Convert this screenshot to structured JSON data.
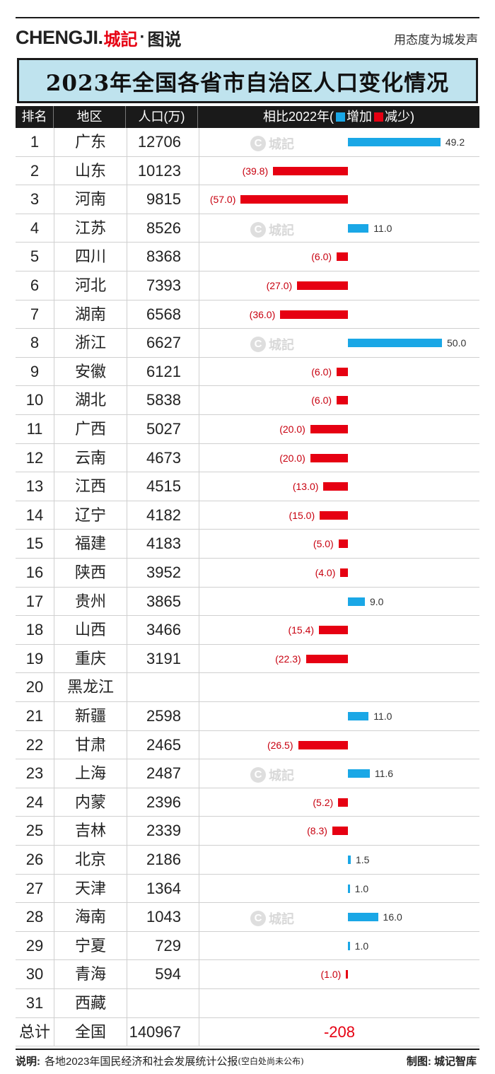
{
  "header": {
    "brand_latin": "CHENGJI.",
    "brand_cn": "城記",
    "brand_sep": "·",
    "brand_sub": "图说",
    "slogan": "用态度为城发声"
  },
  "title": "2023年全国各省市自治区人口变化情况",
  "watermark": "城記",
  "table_header": {
    "rank": "排名",
    "region": "地区",
    "population": "人口(万)",
    "change_prefix": "相比2022年(",
    "increase": "增加",
    "decrease": "减少",
    "change_suffix": ")"
  },
  "colors": {
    "increase": "#1aa7e6",
    "decrease": "#e60012",
    "title_bg": "#bfe3ee"
  },
  "chart_data": {
    "type": "bar",
    "title": "2023年全国各省市自治区人口变化情况",
    "categories": [
      "广东",
      "山东",
      "河南",
      "江苏",
      "四川",
      "河北",
      "湖南",
      "浙江",
      "安徽",
      "湖北",
      "广西",
      "云南",
      "江西",
      "辽宁",
      "福建",
      "陕西",
      "贵州",
      "山西",
      "重庆",
      "黑龙江",
      "新疆",
      "甘肃",
      "上海",
      "内蒙",
      "吉林",
      "北京",
      "天津",
      "海南",
      "宁夏",
      "青海",
      "西藏"
    ],
    "series": [
      {
        "name": "相比2022年",
        "values": [
          49.2,
          -39.8,
          -57.0,
          11.0,
          -6.0,
          -27.0,
          -36.0,
          50.0,
          -6.0,
          -6.0,
          -20.0,
          -20.0,
          -13.0,
          -15.0,
          -5.0,
          -4.0,
          9.0,
          -15.4,
          -22.3,
          null,
          11.0,
          -26.5,
          11.6,
          -5.2,
          -8.3,
          1.5,
          1.0,
          16.0,
          1.0,
          -1.0,
          null
        ]
      }
    ],
    "rows": [
      {
        "rank": "1",
        "region": "广东",
        "population": "12706",
        "change": 49.2,
        "label": "49.2"
      },
      {
        "rank": "2",
        "region": "山东",
        "population": "10123",
        "change": -39.8,
        "label": "(39.8)"
      },
      {
        "rank": "3",
        "region": "河南",
        "population": "9815",
        "change": -57.0,
        "label": "(57.0)"
      },
      {
        "rank": "4",
        "region": "江苏",
        "population": "8526",
        "change": 11.0,
        "label": "11.0"
      },
      {
        "rank": "5",
        "region": "四川",
        "population": "8368",
        "change": -6.0,
        "label": "(6.0)"
      },
      {
        "rank": "6",
        "region": "河北",
        "population": "7393",
        "change": -27.0,
        "label": "(27.0)"
      },
      {
        "rank": "7",
        "region": "湖南",
        "population": "6568",
        "change": -36.0,
        "label": "(36.0)"
      },
      {
        "rank": "8",
        "region": "浙江",
        "population": "6627",
        "change": 50.0,
        "label": "50.0"
      },
      {
        "rank": "9",
        "region": "安徽",
        "population": "6121",
        "change": -6.0,
        "label": "(6.0)"
      },
      {
        "rank": "10",
        "region": "湖北",
        "population": "5838",
        "change": -6.0,
        "label": "(6.0)"
      },
      {
        "rank": "11",
        "region": "广西",
        "population": "5027",
        "change": -20.0,
        "label": "(20.0)"
      },
      {
        "rank": "12",
        "region": "云南",
        "population": "4673",
        "change": -20.0,
        "label": "(20.0)"
      },
      {
        "rank": "13",
        "region": "江西",
        "population": "4515",
        "change": -13.0,
        "label": "(13.0)"
      },
      {
        "rank": "14",
        "region": "辽宁",
        "population": "4182",
        "change": -15.0,
        "label": "(15.0)"
      },
      {
        "rank": "15",
        "region": "福建",
        "population": "4183",
        "change": -5.0,
        "label": "(5.0)"
      },
      {
        "rank": "16",
        "region": "陕西",
        "population": "3952",
        "change": -4.0,
        "label": "(4.0)"
      },
      {
        "rank": "17",
        "region": "贵州",
        "population": "3865",
        "change": 9.0,
        "label": "9.0"
      },
      {
        "rank": "18",
        "region": "山西",
        "population": "3466",
        "change": -15.4,
        "label": "(15.4)"
      },
      {
        "rank": "19",
        "region": "重庆",
        "population": "3191",
        "change": -22.3,
        "label": "(22.3)"
      },
      {
        "rank": "20",
        "region": "黑龙江",
        "population": "",
        "change": null,
        "label": ""
      },
      {
        "rank": "21",
        "region": "新疆",
        "population": "2598",
        "change": 11.0,
        "label": "11.0"
      },
      {
        "rank": "22",
        "region": "甘肃",
        "population": "2465",
        "change": -26.5,
        "label": "(26.5)"
      },
      {
        "rank": "23",
        "region": "上海",
        "population": "2487",
        "change": 11.6,
        "label": "11.6"
      },
      {
        "rank": "24",
        "region": "内蒙",
        "population": "2396",
        "change": -5.2,
        "label": "(5.2)"
      },
      {
        "rank": "25",
        "region": "吉林",
        "population": "2339",
        "change": -8.3,
        "label": "(8.3)"
      },
      {
        "rank": "26",
        "region": "北京",
        "population": "2186",
        "change": 1.5,
        "label": "1.5"
      },
      {
        "rank": "27",
        "region": "天津",
        "population": "1364",
        "change": 1.0,
        "label": "1.0"
      },
      {
        "rank": "28",
        "region": "海南",
        "population": "1043",
        "change": 16.0,
        "label": "16.0"
      },
      {
        "rank": "29",
        "region": "宁夏",
        "population": "729",
        "change": 1.0,
        "label": "1.0"
      },
      {
        "rank": "30",
        "region": "青海",
        "population": "594",
        "change": -1.0,
        "label": "(1.0)"
      },
      {
        "rank": "31",
        "region": "西藏",
        "population": "",
        "change": null,
        "label": ""
      }
    ],
    "total": {
      "rank": "总计",
      "region": "全国",
      "population": "140967",
      "change": "-208"
    }
  },
  "footer": {
    "note_label": "说明:",
    "note_text": "各地2023年国民经济和社会发展统计公报",
    "note_paren": "(空白处尚未公布)",
    "credit": "制图: 城记智库"
  }
}
